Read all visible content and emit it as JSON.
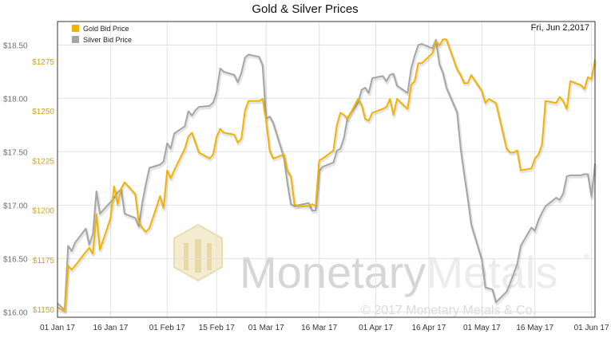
{
  "chart_data": {
    "type": "line",
    "title": "Gold & Silver Prices",
    "date_label": "Fri, Jun 2,2017",
    "watermark": {
      "brand": "MonetaryMetals",
      "word_dark": "Monetary",
      "word_light": "Metals",
      "copyright": "© 2017 Monetary Metals & Co.",
      "registered": "®"
    },
    "x_ticks": [
      "01 Jan 17",
      "16 Jan 17",
      "01 Feb 17",
      "15 Feb 17",
      "01 Mar 17",
      "16 Mar 17",
      "01 Apr 17",
      "16 Apr 17",
      "01 May 17",
      "16 May 17",
      "01 Jun 17"
    ],
    "x_range": [
      "2017-01-01",
      "2017-06-02"
    ],
    "y_left": {
      "label": "Silver",
      "ticks": [
        "$16.00",
        "$16.50",
        "$17.00",
        "$17.50",
        "$18.00",
        "$18.50"
      ],
      "range": [
        15.95,
        18.72
      ]
    },
    "y_right": {
      "label": "Gold",
      "ticks": [
        "$1150",
        "$1175",
        "$1200",
        "$1225",
        "$1250",
        "$1275"
      ],
      "range": [
        1146,
        1295
      ]
    },
    "legend": {
      "position": "top-left"
    },
    "grid": true,
    "series": [
      {
        "name": "Gold Bid Price",
        "axis": "right",
        "color": "#f0b400",
        "x": [
          "2017-01-01",
          "2017-01-03",
          "2017-01-04",
          "2017-01-05",
          "2017-01-06",
          "2017-01-09",
          "2017-01-10",
          "2017-01-11",
          "2017-01-12",
          "2017-01-13",
          "2017-01-16",
          "2017-01-17",
          "2017-01-18",
          "2017-01-19",
          "2017-01-20",
          "2017-01-23",
          "2017-01-24",
          "2017-01-25",
          "2017-01-26",
          "2017-01-27",
          "2017-01-30",
          "2017-01-31",
          "2017-02-01",
          "2017-02-02",
          "2017-02-03",
          "2017-02-06",
          "2017-02-07",
          "2017-02-08",
          "2017-02-09",
          "2017-02-10",
          "2017-02-13",
          "2017-02-14",
          "2017-02-15",
          "2017-02-16",
          "2017-02-17",
          "2017-02-20",
          "2017-02-21",
          "2017-02-22",
          "2017-02-23",
          "2017-02-24",
          "2017-02-27",
          "2017-02-28",
          "2017-03-01",
          "2017-03-02",
          "2017-03-03",
          "2017-03-06",
          "2017-03-07",
          "2017-03-08",
          "2017-03-09",
          "2017-03-10",
          "2017-03-13",
          "2017-03-14",
          "2017-03-15",
          "2017-03-16",
          "2017-03-17",
          "2017-03-20",
          "2017-03-21",
          "2017-03-22",
          "2017-03-23",
          "2017-03-24",
          "2017-03-27",
          "2017-03-28",
          "2017-03-29",
          "2017-03-30",
          "2017-03-31",
          "2017-04-03",
          "2017-04-04",
          "2017-04-05",
          "2017-04-06",
          "2017-04-07",
          "2017-04-10",
          "2017-04-11",
          "2017-04-12",
          "2017-04-13",
          "2017-04-14",
          "2017-04-17",
          "2017-04-18",
          "2017-04-19",
          "2017-04-20",
          "2017-04-21",
          "2017-04-24",
          "2017-04-25",
          "2017-04-26",
          "2017-04-27",
          "2017-04-28",
          "2017-05-01",
          "2017-05-02",
          "2017-05-03",
          "2017-05-04",
          "2017-05-05",
          "2017-05-08",
          "2017-05-09",
          "2017-05-10",
          "2017-05-11",
          "2017-05-12",
          "2017-05-15",
          "2017-05-16",
          "2017-05-17",
          "2017-05-18",
          "2017-05-19",
          "2017-05-22",
          "2017-05-23",
          "2017-05-24",
          "2017-05-25",
          "2017-05-26",
          "2017-05-29",
          "2017-05-30",
          "2017-05-31",
          "2017-06-01",
          "2017-06-02"
        ],
        "values": [
          1151,
          1149,
          1172,
          1170,
          1172,
          1179,
          1181,
          1178,
          1198,
          1180,
          1196,
          1212,
          1203,
          1211,
          1214,
          1208,
          1194,
          1191,
          1189,
          1191,
          1207,
          1201,
          1220,
          1216,
          1220,
          1231,
          1237,
          1239,
          1234,
          1229,
          1226,
          1228,
          1237,
          1241,
          1239,
          1238,
          1234,
          1236,
          1250,
          1255,
          1255,
          1256,
          1245,
          1230,
          1226,
          1228,
          1220,
          1217,
          1203,
          1202,
          1202,
          1203,
          1202,
          1225,
          1226,
          1230,
          1243,
          1249,
          1248,
          1246,
          1256,
          1253,
          1246,
          1245,
          1249,
          1251,
          1252,
          1256,
          1248,
          1256,
          1251,
          1263,
          1265,
          1274,
          1274,
          1279,
          1285,
          1283,
          1286,
          1286,
          1271,
          1268,
          1264,
          1264,
          1268,
          1260,
          1254,
          1256,
          1255,
          1254,
          1231,
          1229,
          1229,
          1230,
          1220,
          1221,
          1226,
          1228,
          1233,
          1255,
          1254,
          1257,
          1255,
          1251,
          1265,
          1263,
          1261,
          1267,
          1266,
          1276
        ]
      },
      {
        "name": "Silver Bid Price",
        "axis": "left",
        "color": "#a5a5a5",
        "x": [
          "2017-01-01",
          "2017-01-03",
          "2017-01-04",
          "2017-01-05",
          "2017-01-06",
          "2017-01-09",
          "2017-01-10",
          "2017-01-11",
          "2017-01-12",
          "2017-01-13",
          "2017-01-16",
          "2017-01-17",
          "2017-01-18",
          "2017-01-19",
          "2017-01-20",
          "2017-01-23",
          "2017-01-24",
          "2017-01-25",
          "2017-01-26",
          "2017-01-27",
          "2017-01-30",
          "2017-01-31",
          "2017-02-01",
          "2017-02-02",
          "2017-02-03",
          "2017-02-06",
          "2017-02-07",
          "2017-02-08",
          "2017-02-09",
          "2017-02-10",
          "2017-02-13",
          "2017-02-14",
          "2017-02-15",
          "2017-02-16",
          "2017-02-17",
          "2017-02-20",
          "2017-02-21",
          "2017-02-22",
          "2017-02-23",
          "2017-02-24",
          "2017-02-27",
          "2017-02-28",
          "2017-03-01",
          "2017-03-02",
          "2017-03-03",
          "2017-03-06",
          "2017-03-07",
          "2017-03-08",
          "2017-03-09",
          "2017-03-10",
          "2017-03-13",
          "2017-03-14",
          "2017-03-15",
          "2017-03-16",
          "2017-03-17",
          "2017-03-20",
          "2017-03-21",
          "2017-03-22",
          "2017-03-23",
          "2017-03-24",
          "2017-03-27",
          "2017-03-28",
          "2017-03-29",
          "2017-03-30",
          "2017-03-31",
          "2017-04-03",
          "2017-04-04",
          "2017-04-05",
          "2017-04-06",
          "2017-04-07",
          "2017-04-10",
          "2017-04-11",
          "2017-04-12",
          "2017-04-13",
          "2017-04-14",
          "2017-04-17",
          "2017-04-18",
          "2017-04-19",
          "2017-04-20",
          "2017-04-21",
          "2017-04-24",
          "2017-04-25",
          "2017-04-26",
          "2017-04-27",
          "2017-04-28",
          "2017-05-01",
          "2017-05-02",
          "2017-05-03",
          "2017-05-04",
          "2017-05-05",
          "2017-05-08",
          "2017-05-09",
          "2017-05-10",
          "2017-05-11",
          "2017-05-12",
          "2017-05-15",
          "2017-05-16",
          "2017-05-17",
          "2017-05-18",
          "2017-05-19",
          "2017-05-22",
          "2017-05-23",
          "2017-05-24",
          "2017-05-25",
          "2017-05-26",
          "2017-05-29",
          "2017-05-30",
          "2017-05-31",
          "2017-06-01",
          "2017-06-02"
        ],
        "values": [
          16.08,
          16.02,
          16.62,
          16.57,
          16.65,
          16.78,
          16.63,
          16.73,
          17.13,
          16.92,
          17.03,
          17.07,
          17.12,
          17.15,
          16.92,
          16.88,
          16.8,
          17.03,
          17.2,
          17.35,
          17.38,
          17.41,
          17.58,
          17.53,
          17.67,
          17.74,
          17.88,
          17.84,
          17.89,
          17.92,
          17.93,
          17.96,
          18.06,
          18.28,
          18.25,
          18.22,
          18.15,
          18.24,
          18.38,
          18.41,
          18.39,
          18.31,
          17.81,
          17.83,
          17.77,
          17.45,
          17.21,
          17.01,
          16.99,
          17.0,
          17.02,
          16.95,
          16.95,
          17.32,
          17.36,
          17.4,
          17.51,
          17.53,
          17.63,
          17.82,
          17.96,
          18.08,
          18.1,
          18.05,
          18.19,
          18.21,
          18.16,
          18.22,
          18.23,
          18.12,
          18.05,
          18.28,
          18.4,
          18.5,
          18.51,
          18.47,
          18.55,
          18.32,
          18.24,
          18.1,
          17.87,
          17.53,
          17.29,
          17.07,
          16.82,
          16.49,
          16.23,
          16.22,
          16.21,
          16.09,
          16.19,
          16.27,
          16.36,
          16.45,
          16.62,
          16.79,
          16.76,
          16.86,
          16.93,
          16.99,
          17.07,
          17.05,
          17.11,
          17.27,
          17.28,
          17.28,
          17.29,
          17.29,
          17.08,
          17.39
        ]
      }
    ]
  }
}
